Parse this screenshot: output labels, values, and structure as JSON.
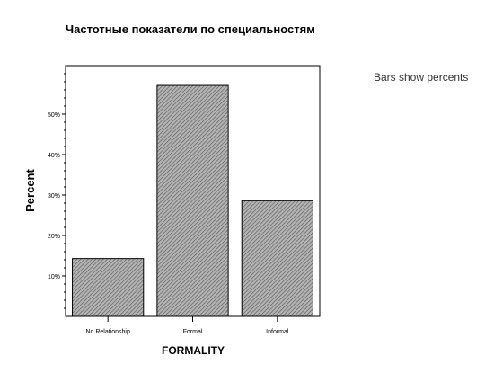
{
  "page": {
    "title": "Частотные показатели по специальностям",
    "note": "Bars show percents"
  },
  "chart_data": {
    "type": "bar",
    "xlabel": "FORMALITY",
    "ylabel": "Percent",
    "categories": [
      "No Relationship",
      "Formal",
      "Informal"
    ],
    "values": [
      14.3,
      57.1,
      28.6
    ],
    "ylim": [
      0,
      62
    ],
    "yticks": [
      10,
      20,
      30,
      40,
      50
    ],
    "ytick_labels": [
      "10%",
      "20%",
      "30%",
      "40%",
      "50%"
    ],
    "grid": false,
    "bar_color": "#8a8a8a",
    "bar_pattern": "hatched"
  }
}
